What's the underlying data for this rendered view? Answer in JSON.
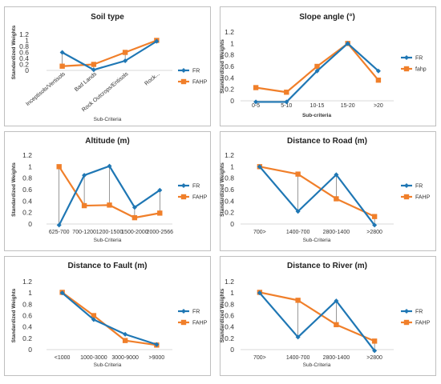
{
  "chart_data": [
    {
      "type": "line",
      "title": "Soil type",
      "xlabel": "Sub-Criteria",
      "xlabel_bold": false,
      "ylabel": "Standardized Weights",
      "ylim": [
        0,
        1.2
      ],
      "yticks": [
        "0",
        "0.2",
        "0.4",
        "0.6",
        "0.8",
        "1",
        "1.2"
      ],
      "ytick_values": [
        0,
        0.2,
        0.4,
        0.6,
        0.8,
        1,
        1.2
      ],
      "grid": false,
      "legend_position": "right",
      "categories": [
        "Inceptisols/Vertisols",
        "Bad Lands",
        "Rock Outcrops/Entisols",
        "Rock..."
      ],
      "tick_rotation": -40,
      "drop_lines": true,
      "series": [
        {
          "name": "FR",
          "values": [
            0.6,
            0.02,
            0.32,
            0.97
          ],
          "color": "#1f77b4",
          "marker": "diamond"
        },
        {
          "name": "FAHP",
          "values": [
            0.14,
            0.2,
            0.6,
            1.0
          ],
          "color": "#f07f2a",
          "marker": "square"
        }
      ]
    },
    {
      "type": "line",
      "title": "Slope angle (°)",
      "xlabel": "Sub-criteria",
      "xlabel_bold": true,
      "ylabel": "Standardized Weights",
      "ylim": [
        0,
        1.2
      ],
      "yticks": [
        "0",
        "0.2",
        "0.4",
        "0.6",
        "0.8",
        "1",
        "1.2"
      ],
      "ytick_values": [
        0,
        0.2,
        0.4,
        0.6,
        0.8,
        1,
        1.2
      ],
      "grid": false,
      "legend_position": "right",
      "categories": [
        "0-5",
        "5-10",
        "10-15",
        "15-20",
        ">20"
      ],
      "tick_rotation": 0,
      "drop_lines": false,
      "series": [
        {
          "name": "FR",
          "values": [
            -0.02,
            -0.02,
            0.52,
            1.0,
            0.52
          ],
          "color": "#1f77b4",
          "marker": "diamond"
        },
        {
          "name": "fahp",
          "values": [
            0.23,
            0.15,
            0.6,
            1.0,
            0.36
          ],
          "color": "#f07f2a",
          "marker": "square"
        }
      ]
    },
    {
      "type": "line",
      "title": "Altitude (m)",
      "xlabel": "Sub-Criteria",
      "xlabel_bold": false,
      "ylabel": "Standardized Weights",
      "ylim": [
        0,
        1.2
      ],
      "yticks": [
        "0",
        "0.2",
        "0.4",
        "0.6",
        "0.8",
        "1",
        "1.2"
      ],
      "ytick_values": [
        0,
        0.2,
        0.4,
        0.6,
        0.8,
        1,
        1.2
      ],
      "grid": false,
      "legend_position": "right",
      "categories": [
        "625-700",
        "700-1200",
        "1200-1500",
        "1500-2000",
        "2000-2566"
      ],
      "tick_rotation": 0,
      "drop_lines": true,
      "series": [
        {
          "name": "FR",
          "values": [
            -0.02,
            0.85,
            1.01,
            0.29,
            0.59
          ],
          "color": "#1f77b4",
          "marker": "diamond"
        },
        {
          "name": "FAHP",
          "values": [
            1.0,
            0.32,
            0.33,
            0.11,
            0.19
          ],
          "color": "#f07f2a",
          "marker": "square"
        }
      ]
    },
    {
      "type": "line",
      "title": "Distance to Road (m)",
      "xlabel": "Sub-Criteria",
      "xlabel_bold": false,
      "ylabel": "Standardized Weights",
      "ylim": [
        0,
        1.2
      ],
      "yticks": [
        "0",
        "0.2",
        "0.4",
        "0.6",
        "0.8",
        "1",
        "1.2"
      ],
      "ytick_values": [
        0,
        0.2,
        0.4,
        0.6,
        0.8,
        1,
        1.2
      ],
      "grid": false,
      "legend_position": "right",
      "categories": [
        "700>",
        "1400-700",
        "2800-1400",
        ">2800"
      ],
      "tick_rotation": 0,
      "drop_lines": true,
      "series": [
        {
          "name": "FR",
          "values": [
            1.0,
            0.22,
            0.86,
            -0.02
          ],
          "color": "#1f77b4",
          "marker": "diamond"
        },
        {
          "name": "FAHP",
          "values": [
            1.0,
            0.87,
            0.44,
            0.13
          ],
          "color": "#f07f2a",
          "marker": "square"
        }
      ]
    },
    {
      "type": "line",
      "title": "Distance to Fault (m)",
      "xlabel": "Sub-Criteria",
      "xlabel_bold": false,
      "ylabel": "Standardized Weights",
      "ylim": [
        0,
        1.2
      ],
      "yticks": [
        "0",
        "0.2",
        "0.4",
        "0.6",
        "0.8",
        "1",
        "1.2"
      ],
      "ytick_values": [
        0,
        0.2,
        0.4,
        0.6,
        0.8,
        1,
        1.2
      ],
      "grid": false,
      "legend_position": "right",
      "categories": [
        "<1000",
        "1000-3000",
        "3000-9000",
        ">9000"
      ],
      "tick_rotation": 0,
      "drop_lines": false,
      "series": [
        {
          "name": "FR",
          "values": [
            1.0,
            0.53,
            0.27,
            0.09
          ],
          "color": "#1f77b4",
          "marker": "diamond"
        },
        {
          "name": "FAHP",
          "values": [
            1.01,
            0.6,
            0.16,
            0.08
          ],
          "color": "#f07f2a",
          "marker": "square"
        }
      ]
    },
    {
      "type": "line",
      "title": "Distance to River (m)",
      "xlabel": "Sub-Criteria",
      "xlabel_bold": false,
      "ylabel": "Standardized Weights",
      "ylim": [
        0,
        1.2
      ],
      "yticks": [
        "0",
        "0.2",
        "0.4",
        "0.6",
        "0.8",
        "1",
        "1.2"
      ],
      "ytick_values": [
        0,
        0.2,
        0.4,
        0.6,
        0.8,
        1,
        1.2
      ],
      "grid": false,
      "legend_position": "right",
      "categories": [
        "700>",
        "1400-700",
        "2800-1400",
        ">2800"
      ],
      "tick_rotation": 0,
      "drop_lines": true,
      "series": [
        {
          "name": "FR",
          "values": [
            1.0,
            0.22,
            0.86,
            -0.02
          ],
          "color": "#1f77b4",
          "marker": "diamond"
        },
        {
          "name": "FAHP",
          "values": [
            1.01,
            0.87,
            0.44,
            0.15
          ],
          "color": "#f07f2a",
          "marker": "square"
        }
      ]
    }
  ]
}
